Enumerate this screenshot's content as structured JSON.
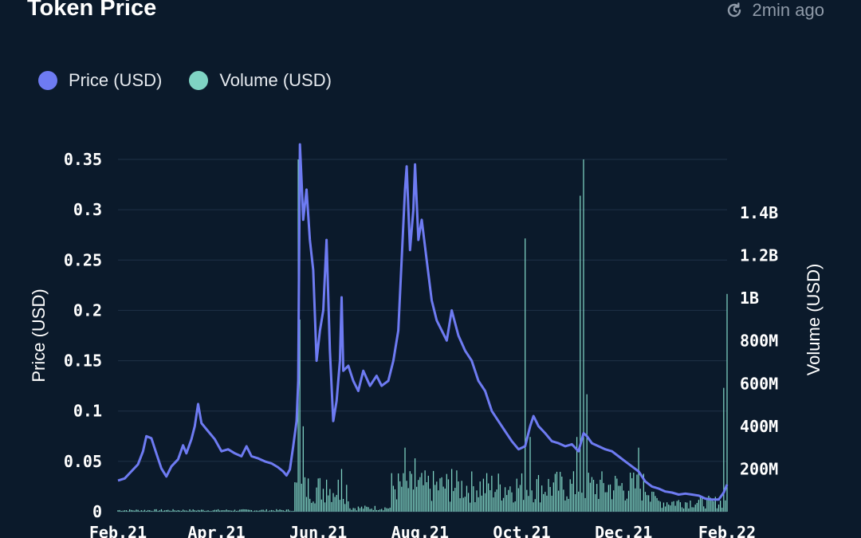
{
  "header": {
    "title": "Token Price",
    "updated": "2min ago",
    "refresh_icon": "refresh-clock-icon"
  },
  "legend": [
    {
      "label": "Price (USD)",
      "color": "#6e7bf2"
    },
    {
      "label": "Volume (USD)",
      "color": "#7fd3c3"
    }
  ],
  "chart_data": {
    "type": "line",
    "title": "Token Price",
    "ylabel": "Price (USD)",
    "y2label": "Volume (USD)",
    "ylim": [
      0,
      0.35
    ],
    "y2lim": [
      0,
      1650000000
    ],
    "yticks": [
      0,
      0.05,
      0.1,
      0.15,
      0.2,
      0.25,
      0.3,
      0.35
    ],
    "ytick_labels": [
      "0",
      "0.05",
      "0.1",
      "0.15",
      "0.2",
      "0.25",
      "0.3",
      "0.35"
    ],
    "y2ticks": [
      200000000,
      400000000,
      600000000,
      800000000,
      1000000000,
      1200000000,
      1400000000
    ],
    "y2tick_labels": [
      "200M",
      "400M",
      "600M",
      "800M",
      "1B",
      "1.2B",
      "1.4B"
    ],
    "xlim": [
      "2021-02-01",
      "2022-02-01"
    ],
    "xticks": [
      "2021-02-01",
      "2021-04-01",
      "2021-06-01",
      "2021-08-01",
      "2021-10-01",
      "2021-12-01",
      "2022-02-01"
    ],
    "xtick_labels": [
      "Feb.21",
      "Apr.21",
      "Jun.21",
      "Aug.21",
      "Oct.21",
      "Dec.21",
      "Feb.22"
    ],
    "grid": true,
    "legend_position": "top-left",
    "series": [
      {
        "name": "Price (USD)",
        "axis": "left",
        "color": "#6e7bf2",
        "points": [
          [
            "2021-02-01",
            0.031
          ],
          [
            "2021-02-05",
            0.033
          ],
          [
            "2021-02-09",
            0.04
          ],
          [
            "2021-02-13",
            0.047
          ],
          [
            "2021-02-16",
            0.06
          ],
          [
            "2021-02-18",
            0.075
          ],
          [
            "2021-02-21",
            0.073
          ],
          [
            "2021-02-24",
            0.058
          ],
          [
            "2021-02-27",
            0.043
          ],
          [
            "2021-03-02",
            0.035
          ],
          [
            "2021-03-05",
            0.045
          ],
          [
            "2021-03-09",
            0.052
          ],
          [
            "2021-03-12",
            0.066
          ],
          [
            "2021-03-14",
            0.058
          ],
          [
            "2021-03-17",
            0.072
          ],
          [
            "2021-03-19",
            0.085
          ],
          [
            "2021-03-21",
            0.107
          ],
          [
            "2021-03-23",
            0.088
          ],
          [
            "2021-03-27",
            0.08
          ],
          [
            "2021-03-31",
            0.072
          ],
          [
            "2021-04-04",
            0.06
          ],
          [
            "2021-04-08",
            0.062
          ],
          [
            "2021-04-12",
            0.058
          ],
          [
            "2021-04-16",
            0.055
          ],
          [
            "2021-04-19",
            0.065
          ],
          [
            "2021-04-22",
            0.055
          ],
          [
            "2021-04-26",
            0.053
          ],
          [
            "2021-04-30",
            0.05
          ],
          [
            "2021-05-04",
            0.048
          ],
          [
            "2021-05-08",
            0.044
          ],
          [
            "2021-05-11",
            0.04
          ],
          [
            "2021-05-13",
            0.036
          ],
          [
            "2021-05-15",
            0.042
          ],
          [
            "2021-05-17",
            0.065
          ],
          [
            "2021-05-19",
            0.09
          ],
          [
            "2021-05-20",
            0.13
          ],
          [
            "2021-05-21",
            0.365
          ],
          [
            "2021-05-22",
            0.33
          ],
          [
            "2021-05-23",
            0.29
          ],
          [
            "2021-05-25",
            0.32
          ],
          [
            "2021-05-27",
            0.27
          ],
          [
            "2021-05-29",
            0.24
          ],
          [
            "2021-05-31",
            0.15
          ],
          [
            "2021-06-02",
            0.18
          ],
          [
            "2021-06-04",
            0.2
          ],
          [
            "2021-06-06",
            0.27
          ],
          [
            "2021-06-08",
            0.16
          ],
          [
            "2021-06-10",
            0.09
          ],
          [
            "2021-06-12",
            0.11
          ],
          [
            "2021-06-14",
            0.15
          ],
          [
            "2021-06-15",
            0.213
          ],
          [
            "2021-06-16",
            0.14
          ],
          [
            "2021-06-19",
            0.145
          ],
          [
            "2021-06-22",
            0.13
          ],
          [
            "2021-06-25",
            0.12
          ],
          [
            "2021-06-28",
            0.14
          ],
          [
            "2021-07-02",
            0.125
          ],
          [
            "2021-07-06",
            0.135
          ],
          [
            "2021-07-09",
            0.125
          ],
          [
            "2021-07-13",
            0.13
          ],
          [
            "2021-07-16",
            0.15
          ],
          [
            "2021-07-19",
            0.18
          ],
          [
            "2021-07-21",
            0.25
          ],
          [
            "2021-07-23",
            0.32
          ],
          [
            "2021-07-24",
            0.343
          ],
          [
            "2021-07-26",
            0.26
          ],
          [
            "2021-07-28",
            0.3
          ],
          [
            "2021-07-29",
            0.345
          ],
          [
            "2021-07-31",
            0.27
          ],
          [
            "2021-08-02",
            0.29
          ],
          [
            "2021-08-05",
            0.25
          ],
          [
            "2021-08-08",
            0.21
          ],
          [
            "2021-08-11",
            0.19
          ],
          [
            "2021-08-14",
            0.18
          ],
          [
            "2021-08-17",
            0.17
          ],
          [
            "2021-08-20",
            0.2
          ],
          [
            "2021-08-24",
            0.175
          ],
          [
            "2021-08-28",
            0.16
          ],
          [
            "2021-09-01",
            0.15
          ],
          [
            "2021-09-05",
            0.13
          ],
          [
            "2021-09-09",
            0.12
          ],
          [
            "2021-09-13",
            0.1
          ],
          [
            "2021-09-17",
            0.09
          ],
          [
            "2021-09-21",
            0.08
          ],
          [
            "2021-09-25",
            0.07
          ],
          [
            "2021-09-29",
            0.062
          ],
          [
            "2021-10-03",
            0.065
          ],
          [
            "2021-10-06",
            0.085
          ],
          [
            "2021-10-08",
            0.095
          ],
          [
            "2021-10-11",
            0.085
          ],
          [
            "2021-10-15",
            0.078
          ],
          [
            "2021-10-19",
            0.07
          ],
          [
            "2021-10-23",
            0.068
          ],
          [
            "2021-10-27",
            0.065
          ],
          [
            "2021-10-31",
            0.067
          ],
          [
            "2021-11-04",
            0.06
          ],
          [
            "2021-11-07",
            0.078
          ],
          [
            "2021-11-09",
            0.075
          ],
          [
            "2021-11-12",
            0.068
          ],
          [
            "2021-11-16",
            0.065
          ],
          [
            "2021-11-20",
            0.062
          ],
          [
            "2021-11-24",
            0.06
          ],
          [
            "2021-11-28",
            0.055
          ],
          [
            "2021-12-02",
            0.05
          ],
          [
            "2021-12-06",
            0.045
          ],
          [
            "2021-12-10",
            0.04
          ],
          [
            "2021-12-14",
            0.03
          ],
          [
            "2021-12-18",
            0.025
          ],
          [
            "2021-12-22",
            0.023
          ],
          [
            "2021-12-26",
            0.02
          ],
          [
            "2021-12-30",
            0.019
          ],
          [
            "2022-01-03",
            0.017
          ],
          [
            "2022-01-07",
            0.018
          ],
          [
            "2022-01-11",
            0.017
          ],
          [
            "2022-01-15",
            0.016
          ],
          [
            "2022-01-19",
            0.013
          ],
          [
            "2022-01-23",
            0.012
          ],
          [
            "2022-01-27",
            0.012
          ],
          [
            "2022-01-30",
            0.019
          ],
          [
            "2022-02-01",
            0.027
          ]
        ]
      },
      {
        "name": "Volume (USD)",
        "axis": "right",
        "color": "#7fd3c3",
        "spikes": [
          [
            "2021-05-20",
            1650000000
          ],
          [
            "2021-05-21",
            900000000
          ],
          [
            "2021-05-23",
            400000000
          ],
          [
            "2021-06-06",
            150000000
          ],
          [
            "2021-06-15",
            200000000
          ],
          [
            "2021-07-23",
            300000000
          ],
          [
            "2021-07-29",
            250000000
          ],
          [
            "2021-08-20",
            200000000
          ],
          [
            "2021-10-03",
            1280000000
          ],
          [
            "2021-10-06",
            350000000
          ],
          [
            "2021-11-05",
            1480000000
          ],
          [
            "2021-11-07",
            1650000000
          ],
          [
            "2021-11-09",
            550000000
          ],
          [
            "2021-11-03",
            350000000
          ],
          [
            "2021-12-10",
            300000000
          ],
          [
            "2022-01-30",
            580000000
          ],
          [
            "2022-02-01",
            1020000000
          ]
        ]
      }
    ]
  }
}
